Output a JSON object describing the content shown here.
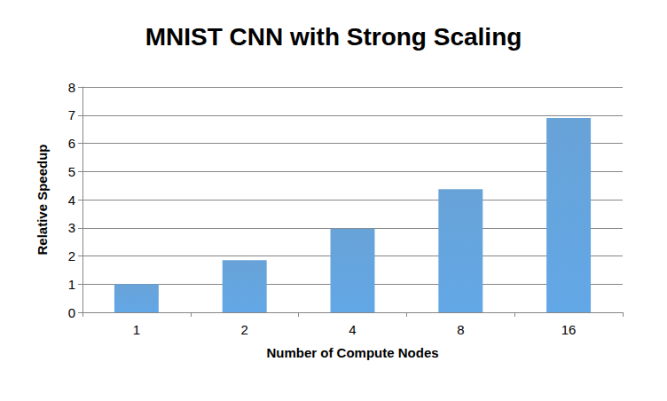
{
  "chart_data": {
    "type": "bar",
    "title": "MNIST CNN with Strong Scaling",
    "x_label": "Number of Compute Nodes",
    "y_label": "Relative Speedup",
    "categories": [
      "1",
      "2",
      "4",
      "8",
      "16"
    ],
    "values": [
      1.0,
      1.85,
      2.97,
      4.37,
      6.9
    ],
    "color": "#5b9bd5",
    "ylim": [
      0,
      8
    ],
    "yticks": [
      0,
      1,
      2,
      3,
      4,
      5,
      6,
      7,
      8
    ],
    "grid": true
  }
}
